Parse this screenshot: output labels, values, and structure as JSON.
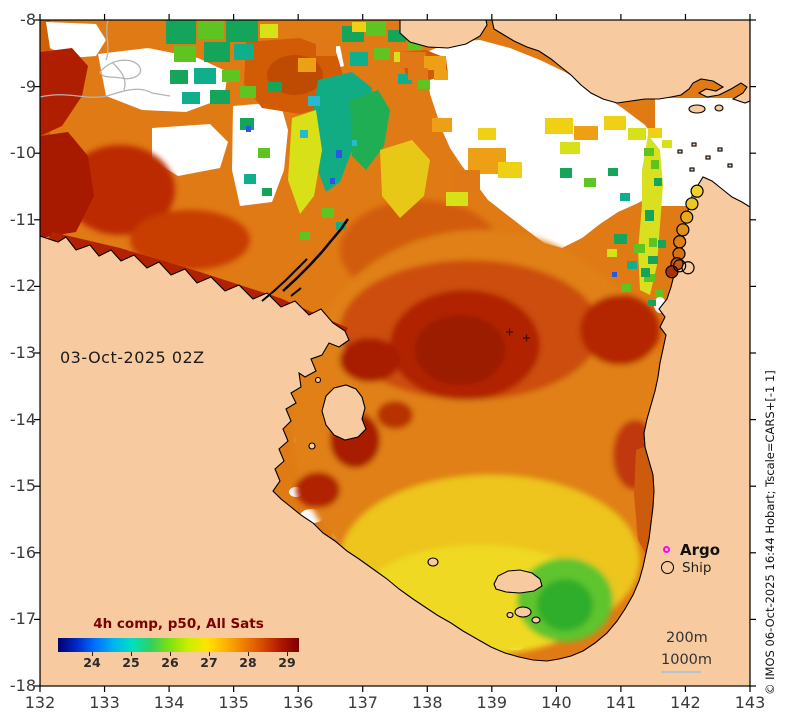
{
  "figure": {
    "date_label": "03-Oct-2025 02Z",
    "copyright": "© IMOS 06-Oct-2025 16:44 Hobart; Tscale=CARS+[-1 1]"
  },
  "axes": {
    "x": {
      "ticks": [
        "132",
        "133",
        "134",
        "135",
        "136",
        "137",
        "138",
        "139",
        "140",
        "141",
        "142",
        "143"
      ]
    },
    "y": {
      "ticks": [
        "-8",
        "-9",
        "-10",
        "-11",
        "-12",
        "-13",
        "-14",
        "-15",
        "-16",
        "-17",
        "-18"
      ]
    }
  },
  "colorbar": {
    "title": "4h comp, p50, All Sats",
    "title_color": "#7a0000",
    "ticks": [
      "24",
      "25",
      "26",
      "27",
      "28",
      "29"
    ],
    "gradient": [
      "#00006e",
      "#0028c8",
      "#0070ff",
      "#00b4f0",
      "#00e0c0",
      "#30d060",
      "#80e010",
      "#c8ee00",
      "#ffe400",
      "#ffb400",
      "#f08000",
      "#d84c00",
      "#b01800",
      "#7c0000"
    ]
  },
  "legend": {
    "argo_label": "Argo",
    "argo_color": "#ff00ff",
    "ship_label": "Ship",
    "ship_color": "#000000"
  },
  "contours": {
    "label_200m": "200m",
    "label_1000m": "1000m",
    "line_color": "#b9c2cc"
  },
  "colors": {
    "land": "#f8caa0",
    "no_data": "#ffffff",
    "coastline": "#000000",
    "base_sea": "#e07a14"
  },
  "chart_data": {
    "type": "heatmap",
    "title": "4h comp, p50, All Sats",
    "datetime_label": "03-Oct-2025 02Z",
    "lon_range": [
      132,
      143
    ],
    "lat_range": [
      -18,
      -8
    ],
    "colorbar_ticks": [
      24,
      25,
      26,
      27,
      28,
      29
    ],
    "colorbar_range_est": [
      23.1,
      29.3
    ],
    "legend": [
      "Argo",
      "Ship"
    ],
    "depth_contour_labels_m": [
      200,
      1000
    ],
    "ship_track": [
      {
        "lon": 142.18,
        "lat": -10.57,
        "fill": "#f2d428"
      },
      {
        "lon": 142.1,
        "lat": -10.76,
        "fill": "#eec822"
      },
      {
        "lon": 142.02,
        "lat": -10.96,
        "fill": "#e8aa1c"
      },
      {
        "lon": 141.96,
        "lat": -11.15,
        "fill": "#e29018"
      },
      {
        "lon": 141.91,
        "lat": -11.33,
        "fill": "#de8014"
      },
      {
        "lon": 141.9,
        "lat": -11.51,
        "fill": "#d87012"
      },
      {
        "lon": 141.87,
        "lat": -11.66,
        "fill": "#c8560e"
      },
      {
        "lon": 141.79,
        "lat": -11.78,
        "fill": "#a83208"
      },
      {
        "lon": 141.91,
        "lat": -11.69,
        "fill": "none"
      },
      {
        "lon": 142.04,
        "lat": -11.72,
        "fill": "none"
      }
    ]
  }
}
